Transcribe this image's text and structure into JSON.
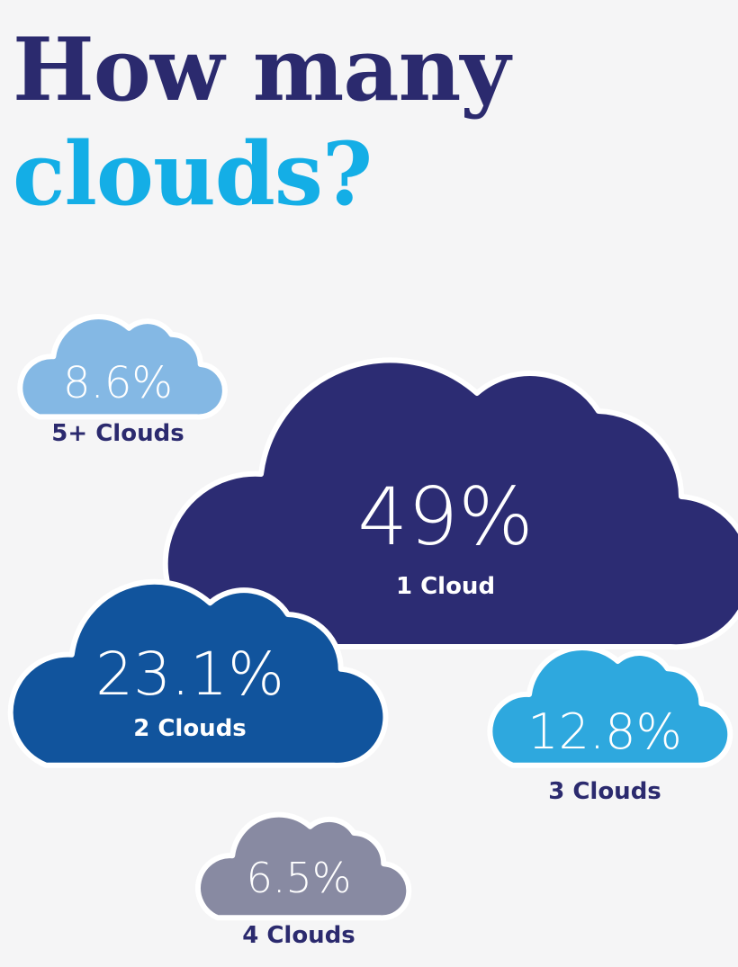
{
  "title": {
    "line1": "How many",
    "line2": "clouds?"
  },
  "colors": {
    "title_line1": "#2b2a6e",
    "title_line2": "#14aee6",
    "background": "#f5f5f6"
  },
  "chart_data": {
    "type": "bubble-infographic",
    "unit": "%",
    "items": [
      {
        "category": "1 Cloud",
        "value": 49,
        "label": "49%",
        "color": "#2c2c73",
        "label_color": "#ffffff"
      },
      {
        "category": "2 Clouds",
        "value": 23.1,
        "label": "23.1%",
        "color": "#11549d",
        "label_color": "#ffffff"
      },
      {
        "category": "3 Clouds",
        "value": 12.8,
        "label": "12.8%",
        "color": "#2ea8de",
        "label_color": "#2b2a6e"
      },
      {
        "category": "5+ Clouds",
        "value": 8.6,
        "label": "8.6%",
        "color": "#84b8e4",
        "label_color": "#2b2a6e"
      },
      {
        "category": "4 Clouds",
        "value": 6.5,
        "label": "6.5%",
        "color": "#888aa2",
        "label_color": "#2b2a6e"
      }
    ]
  }
}
